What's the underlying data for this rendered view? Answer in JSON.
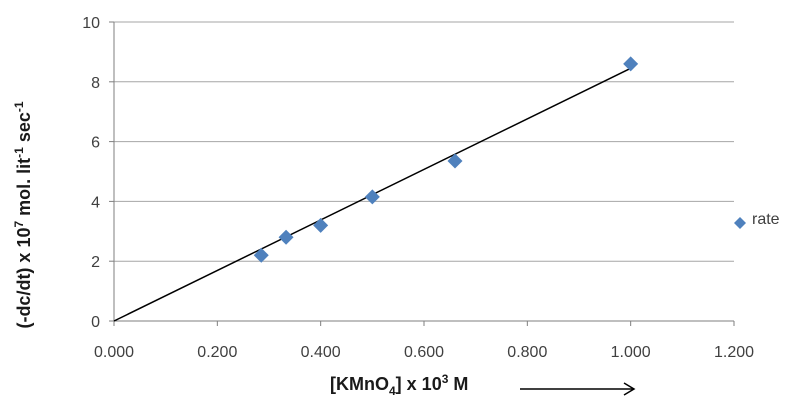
{
  "chart_data": {
    "type": "scatter",
    "title": "",
    "xlabel": {
      "main": "[KMnO",
      "sub": "4",
      "mid": "] x 10",
      "sup": "3",
      "tail": " M"
    },
    "ylabel": {
      "p1": "(-dc/dt) x 10",
      "sup1": "7",
      "p2": " mol. lit",
      "sup2": "-1",
      "p3": " sec",
      "sup3": "-1"
    },
    "xlim": [
      0,
      1.2
    ],
    "ylim": [
      0,
      10
    ],
    "xticks": [
      "0.000",
      "0.200",
      "0.400",
      "0.600",
      "0.800",
      "1.000",
      "1.200"
    ],
    "yticks": [
      "0",
      "2",
      "4",
      "6",
      "8",
      "10"
    ],
    "grid": "horizontal",
    "legend_position": "right",
    "series": [
      {
        "name": "rate",
        "marker": "diamond",
        "color": "#4f81bd",
        "points": [
          {
            "x": 0.285,
            "y": 2.2
          },
          {
            "x": 0.333,
            "y": 2.8
          },
          {
            "x": 0.4,
            "y": 3.2
          },
          {
            "x": 0.5,
            "y": 4.15
          },
          {
            "x": 0.66,
            "y": 5.35
          },
          {
            "x": 1.0,
            "y": 8.6
          }
        ]
      }
    ],
    "trendline": {
      "x": [
        0,
        1.0
      ],
      "y": [
        0,
        8.45
      ],
      "color": "#000000"
    }
  }
}
